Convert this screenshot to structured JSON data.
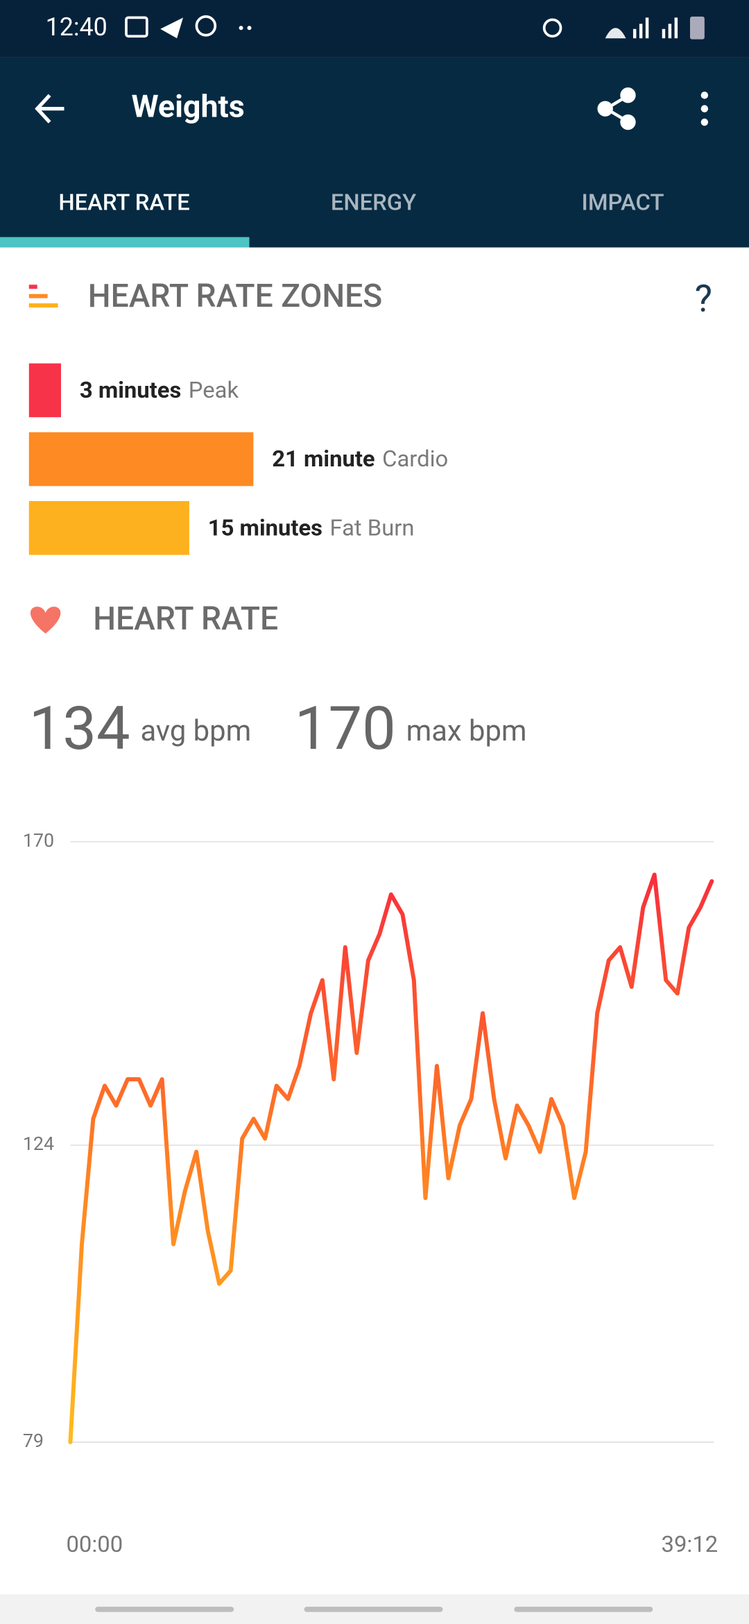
{
  "status": {
    "time": "12:40"
  },
  "appbar": {
    "title": "Weights"
  },
  "tabs": [
    "HEART RATE",
    "ENERGY",
    "IMPACT"
  ],
  "zones": {
    "title": "HEART RATE ZONES",
    "help": "?",
    "items": [
      {
        "amount": "3 minutes",
        "label": "Peak",
        "minutes": 3,
        "color": "#f7334a"
      },
      {
        "amount": "21 minute",
        "label": "Cardio",
        "minutes": 21,
        "color": "#fd8a22"
      },
      {
        "amount": "15 minutes",
        "label": "Fat Burn",
        "minutes": 15,
        "color": "#feb11e"
      }
    ]
  },
  "heart_rate": {
    "title": "HEART RATE",
    "avg": 134,
    "avg_unit": "avg bpm",
    "max": 170,
    "max_unit": "max bpm"
  },
  "chart_data": {
    "type": "line",
    "x": [
      0,
      42,
      84,
      126,
      168,
      210,
      252,
      294,
      336,
      378,
      420,
      462,
      504,
      546,
      588,
      630,
      672,
      714,
      756,
      798,
      840,
      882,
      924,
      966,
      1008,
      1050,
      1092,
      1134,
      1176,
      1218,
      1260,
      1302,
      1344,
      1386,
      1428,
      1470,
      1512,
      1554,
      1596,
      1638,
      1680,
      1722,
      1764,
      1806,
      1848,
      1890,
      1932,
      1974,
      2016,
      2058,
      2100,
      2142,
      2184,
      2226,
      2268,
      2310,
      2352
    ],
    "values": [
      79,
      109,
      128,
      133,
      130,
      134,
      134,
      130,
      134,
      109,
      117,
      123,
      111,
      103,
      105,
      125,
      128,
      125,
      133,
      131,
      136,
      144,
      149,
      134,
      154,
      138,
      152,
      156,
      162,
      159,
      149,
      116,
      136,
      119,
      127,
      131,
      144,
      131,
      122,
      130,
      127,
      123,
      131,
      127,
      116,
      123,
      144,
      152,
      154,
      148,
      160,
      165,
      149,
      147,
      157,
      160,
      164
    ],
    "xlim": [
      0,
      2352
    ],
    "ylim": [
      79,
      170
    ],
    "yticks": [
      79,
      124,
      170
    ],
    "xticks": [
      {
        "value": 0,
        "label": "00:00"
      },
      {
        "value": 2352,
        "label": "39:12"
      }
    ],
    "grid": true,
    "colors": [
      "#ffbb1c",
      "#ff7a24",
      "#f7253f"
    ]
  }
}
